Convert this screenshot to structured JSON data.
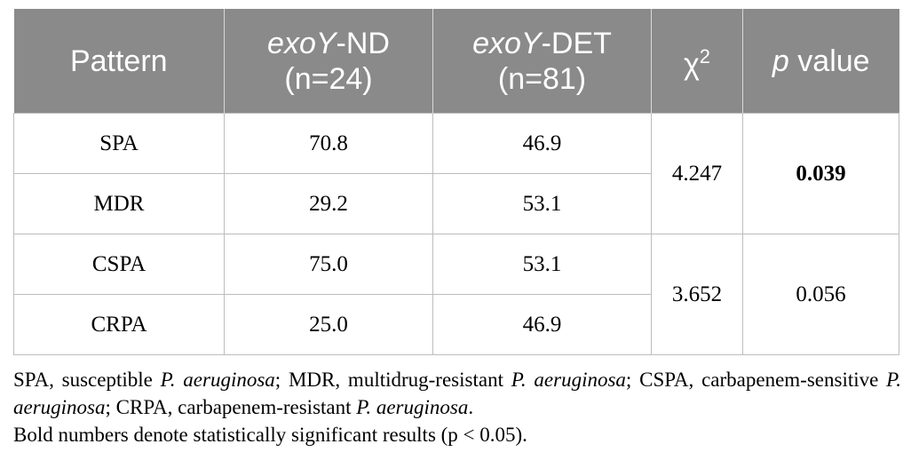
{
  "table": {
    "headers": [
      {
        "name": "pattern",
        "pre": "",
        "italic": "",
        "post": "Pattern",
        "second_line": ""
      },
      {
        "name": "exoy-nd",
        "pre": "",
        "italic": "exoY",
        "post": "-ND",
        "second_line": "(n=24)"
      },
      {
        "name": "exoy-det",
        "pre": "",
        "italic": "exoY",
        "post": "-DET",
        "second_line": "(n=81)"
      },
      {
        "name": "chi2",
        "pre": "χ",
        "italic": "",
        "post": "",
        "sup": "2",
        "second_line": ""
      },
      {
        "name": "p-value",
        "pre": "",
        "italic": "p",
        "post": " value",
        "second_line": ""
      }
    ],
    "header_labels": {
      "pattern": "Pattern",
      "nd_italic": "exoY",
      "nd_rest": "-ND",
      "nd_n": "(n=24)",
      "det_italic": "exoY",
      "det_rest": "-DET",
      "det_n": "(n=81)",
      "chi": "χ",
      "chi_sup": "2",
      "p_italic": "p",
      "p_rest": " value"
    },
    "groups": [
      {
        "rows": [
          {
            "pattern": "SPA",
            "nd": "70.8",
            "det": "46.9"
          },
          {
            "pattern": "MDR",
            "nd": "29.2",
            "det": "53.1"
          }
        ],
        "chi2": "4.247",
        "p_value": "0.039",
        "p_bold": true
      },
      {
        "rows": [
          {
            "pattern": "CSPA",
            "nd": "75.0",
            "det": "53.1"
          },
          {
            "pattern": "CRPA",
            "nd": "25.0",
            "det": "46.9"
          }
        ],
        "chi2": "3.652",
        "p_value": "0.056",
        "p_bold": false
      }
    ]
  },
  "footnote": {
    "abbrev": [
      {
        "text": "SPA, susceptible ",
        "italic": false
      },
      {
        "text": "P. aeruginosa",
        "italic": true
      },
      {
        "text": "; MDR, multidrug-resistant ",
        "italic": false
      },
      {
        "text": "P. aeruginosa",
        "italic": true
      },
      {
        "text": "; CSPA, carbapenem-sensitive ",
        "italic": false
      },
      {
        "text": "P. aeruginosa",
        "italic": true
      },
      {
        "text": "; CRPA, carbapenem-resistant ",
        "italic": false
      },
      {
        "text": "P. aeruginosa",
        "italic": true
      },
      {
        "text": ".",
        "italic": false
      }
    ],
    "significance_note": "Bold numbers denote statistically significant results (p < 0.05)."
  },
  "colors": {
    "header_bg": "#8a8a8a",
    "header_text": "#ffffff",
    "border": "#bdbdbd"
  }
}
